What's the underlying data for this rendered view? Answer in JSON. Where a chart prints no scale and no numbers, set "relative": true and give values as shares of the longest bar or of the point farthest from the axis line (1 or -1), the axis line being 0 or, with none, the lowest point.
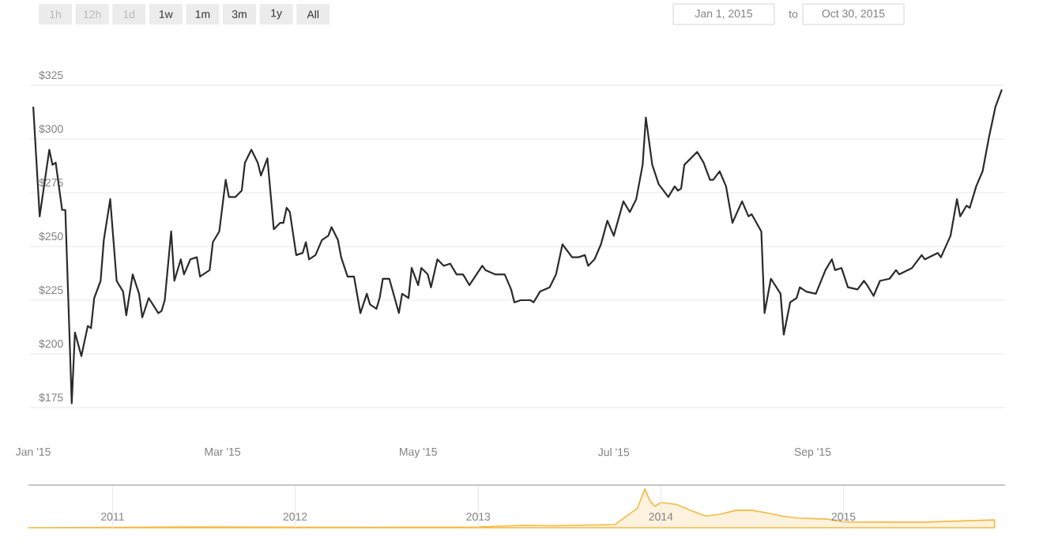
{
  "chart_data": [
    {
      "type": "line",
      "grid": "y",
      "annotations": [
        "1h",
        "12h",
        "1d",
        "1w",
        "1m",
        "3m",
        "1y",
        "All",
        "Jan 1, 2015",
        "to",
        "Oct 30, 2015"
      ],
      "xlim": [
        "2014-12-31",
        "2015-10-31"
      ],
      "xticks": [
        {
          "value": "2015-01-01",
          "label": "Jan '15"
        },
        {
          "value": "2015-03-01",
          "label": "Mar '15"
        },
        {
          "value": "2015-05-01",
          "label": "May '15"
        },
        {
          "value": "2015-07-01",
          "label": "Jul '15"
        },
        {
          "value": "2015-09-01",
          "label": "Sep '15"
        }
      ],
      "ylim": [
        175,
        325
      ],
      "yticks": [
        {
          "value": 175,
          "label": "$175"
        },
        {
          "value": 200,
          "label": "$200"
        },
        {
          "value": 225,
          "label": "$225"
        },
        {
          "value": 250,
          "label": "$250"
        },
        {
          "value": 275,
          "label": "$275"
        },
        {
          "value": 300,
          "label": "$300"
        },
        {
          "value": 325,
          "label": "$325"
        }
      ],
      "x": [
        "2015-01-01",
        "2015-01-03",
        "2015-01-06",
        "2015-01-07",
        "2015-01-08",
        "2015-01-10",
        "2015-01-11",
        "2015-01-13",
        "2015-01-14",
        "2015-01-16",
        "2015-01-18",
        "2015-01-19",
        "2015-01-20",
        "2015-01-22",
        "2015-01-23",
        "2015-01-25",
        "2015-01-27",
        "2015-01-29",
        "2015-01-30",
        "2015-02-01",
        "2015-02-03",
        "2015-02-04",
        "2015-02-06",
        "2015-02-09",
        "2015-02-10",
        "2015-02-11",
        "2015-02-13",
        "2015-02-14",
        "2015-02-16",
        "2015-02-17",
        "2015-02-19",
        "2015-02-21",
        "2015-02-22",
        "2015-02-25",
        "2015-02-26",
        "2015-02-28",
        "2015-03-02",
        "2015-03-03",
        "2015-03-05",
        "2015-03-07",
        "2015-03-08",
        "2015-03-10",
        "2015-03-12",
        "2015-03-13",
        "2015-03-15",
        "2015-03-17",
        "2015-03-19",
        "2015-03-20",
        "2015-03-21",
        "2015-03-22",
        "2015-03-24",
        "2015-03-26",
        "2015-03-27",
        "2015-03-28",
        "2015-03-30",
        "2015-04-01",
        "2015-04-03",
        "2015-04-04",
        "2015-04-06",
        "2015-04-07",
        "2015-04-09",
        "2015-04-11",
        "2015-04-13",
        "2015-04-15",
        "2015-04-16",
        "2015-04-18",
        "2015-04-19",
        "2015-04-20",
        "2015-04-22",
        "2015-04-25",
        "2015-04-26",
        "2015-04-28",
        "2015-04-29",
        "2015-05-01",
        "2015-05-02",
        "2015-05-04",
        "2015-05-05",
        "2015-05-07",
        "2015-05-09",
        "2015-05-11",
        "2015-05-13",
        "2015-05-15",
        "2015-05-17",
        "2015-05-21",
        "2015-05-22",
        "2015-05-25",
        "2015-05-28",
        "2015-05-30",
        "2015-05-31",
        "2015-06-02",
        "2015-06-05",
        "2015-06-06",
        "2015-06-08",
        "2015-06-11",
        "2015-06-13",
        "2015-06-15",
        "2015-06-18",
        "2015-06-20",
        "2015-06-22",
        "2015-06-23",
        "2015-06-25",
        "2015-06-27",
        "2015-06-29",
        "2015-07-01",
        "2015-07-04",
        "2015-07-06",
        "2015-07-07",
        "2015-07-08",
        "2015-07-10",
        "2015-07-11",
        "2015-07-13",
        "2015-07-15",
        "2015-07-18",
        "2015-07-20",
        "2015-07-21",
        "2015-07-22",
        "2015-07-23",
        "2015-07-27",
        "2015-07-29",
        "2015-07-31",
        "2015-08-01",
        "2015-08-03",
        "2015-08-05",
        "2015-08-07",
        "2015-08-10",
        "2015-08-12",
        "2015-08-13",
        "2015-08-16",
        "2015-08-17",
        "2015-08-19",
        "2015-08-22",
        "2015-08-23",
        "2015-08-25",
        "2015-08-27",
        "2015-08-28",
        "2015-08-30",
        "2015-09-02",
        "2015-09-05",
        "2015-09-07",
        "2015-09-08",
        "2015-09-10",
        "2015-09-12",
        "2015-09-15",
        "2015-09-17",
        "2015-09-18",
        "2015-09-20",
        "2015-09-22",
        "2015-09-25",
        "2015-09-27",
        "2015-09-28",
        "2015-10-02",
        "2015-10-05",
        "2015-10-06",
        "2015-10-10",
        "2015-10-11",
        "2015-10-14",
        "2015-10-16",
        "2015-10-17",
        "2015-10-19",
        "2015-10-20",
        "2015-10-22",
        "2015-10-24",
        "2015-10-26",
        "2015-10-28",
        "2015-10-30"
      ],
      "series": [
        {
          "color": "#2b2b2b",
          "values": [
            315,
            264,
            295,
            288,
            289,
            267,
            267,
            177,
            210,
            199,
            213,
            212,
            226,
            234,
            253,
            272,
            234,
            229,
            218,
            237,
            228,
            217,
            226,
            219,
            220,
            225,
            257,
            234,
            244,
            237,
            244,
            245,
            236,
            239,
            252,
            257,
            281,
            273,
            273,
            276,
            289,
            295,
            289,
            283,
            291,
            258,
            261,
            261,
            268,
            266,
            246,
            247,
            252,
            244,
            246,
            253,
            255,
            259,
            253,
            245,
            236,
            236,
            219,
            228,
            223,
            221,
            226,
            235,
            235,
            219,
            228,
            226,
            240,
            232,
            240,
            237,
            231,
            244,
            241,
            242,
            237,
            237,
            232,
            241,
            239,
            237,
            237,
            230,
            224,
            225,
            225,
            224,
            229,
            231,
            237,
            251,
            245,
            245,
            246,
            241,
            244,
            251,
            262,
            255,
            271,
            266,
            269,
            272,
            288,
            310,
            288,
            279,
            273,
            278,
            276,
            277,
            288,
            294,
            289,
            281,
            281,
            285,
            278,
            261,
            271,
            264,
            265,
            257,
            219,
            235,
            228,
            209,
            224,
            226,
            231,
            229,
            228,
            239,
            244,
            239,
            240,
            231,
            230,
            234,
            232,
            227,
            234,
            235,
            239,
            237,
            240,
            246,
            244,
            247,
            245,
            255,
            272,
            264,
            269,
            268,
            278,
            285,
            301,
            315,
            323
          ]
        }
      ]
    },
    {
      "type": "area",
      "relative": true,
      "grid": "x",
      "xlim": [
        "2010-07-17",
        "2015-11-20"
      ],
      "xticks": [
        {
          "value": "2011-01-01",
          "label": "2011"
        },
        {
          "value": "2012-01-01",
          "label": "2012"
        },
        {
          "value": "2013-01-01",
          "label": "2013"
        },
        {
          "value": "2014-01-01",
          "label": "2014"
        },
        {
          "value": "2015-01-01",
          "label": "2015"
        }
      ],
      "x": [
        "2010-07-17",
        "2011-06-01",
        "2012-06-01",
        "2013-01-01",
        "2013-04-01",
        "2013-06-01",
        "2013-10-01",
        "2013-11-15",
        "2013-11-30",
        "2013-12-10",
        "2013-12-20",
        "2014-01-01",
        "2014-02-01",
        "2014-03-01",
        "2014-04-01",
        "2014-05-01",
        "2014-06-01",
        "2014-07-01",
        "2014-08-01",
        "2014-09-01",
        "2014-10-01",
        "2014-12-01",
        "2015-01-01",
        "2015-06-01",
        "2015-10-30"
      ],
      "series": [
        {
          "color": "#f5b942",
          "values": [
            0,
            0.02,
            0.01,
            0.02,
            0.06,
            0.05,
            0.08,
            0.5,
            1.0,
            0.7,
            0.55,
            0.65,
            0.6,
            0.45,
            0.3,
            0.35,
            0.45,
            0.45,
            0.38,
            0.3,
            0.25,
            0.22,
            0.15,
            0.14,
            0.2
          ]
        }
      ]
    }
  ]
}
